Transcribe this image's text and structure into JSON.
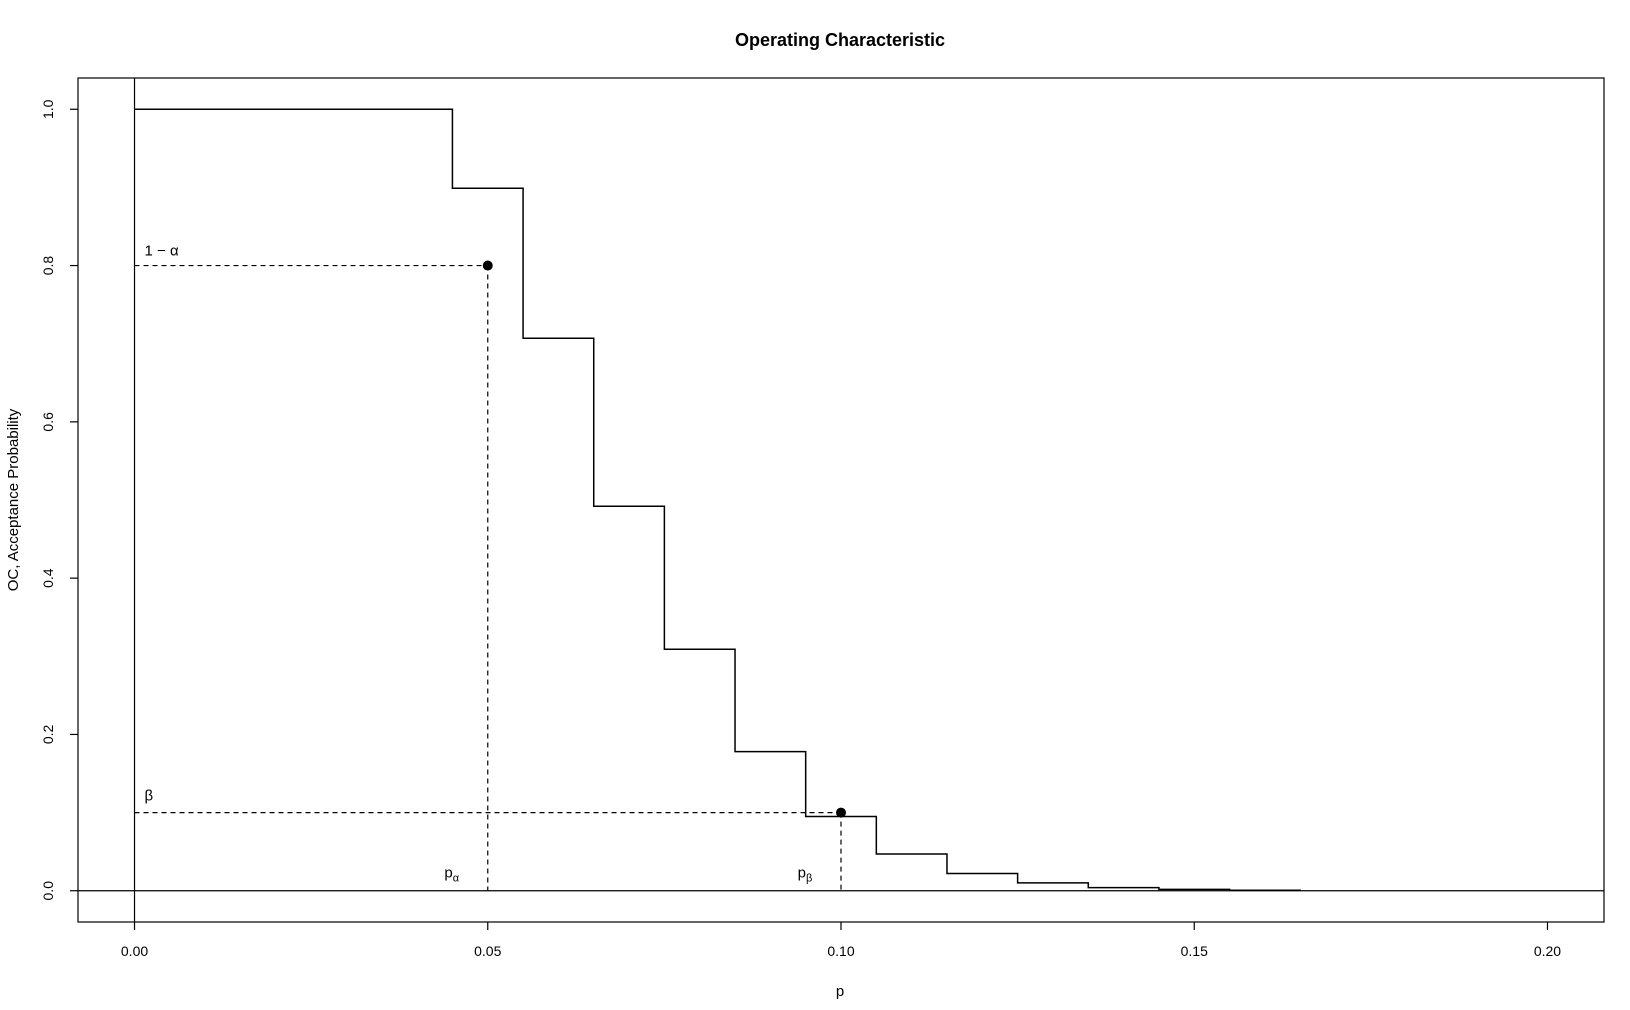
{
  "chart_data": {
    "type": "line",
    "title": "Operating Characteristic",
    "xlabel": "p",
    "ylabel": "OC, Acceptance Probability",
    "xlim": [
      -0.008,
      0.208
    ],
    "ylim": [
      -0.04,
      1.04
    ],
    "x_ticks": [
      "0.00",
      "0.05",
      "0.10",
      "0.15",
      "0.20"
    ],
    "y_ticks": [
      "0.0",
      "0.2",
      "0.4",
      "0.6",
      "0.8",
      "1.0"
    ],
    "grid": false,
    "legend": "none",
    "reference_lines": {
      "x": 0,
      "y": 0
    },
    "series": [
      {
        "style": "step",
        "x": [
          0.0,
          0.045,
          0.055,
          0.065,
          0.075,
          0.085,
          0.095,
          0.105,
          0.115,
          0.125,
          0.135,
          0.145,
          0.155,
          0.165
        ],
        "y": [
          1.0,
          0.899,
          0.707,
          0.492,
          0.309,
          0.178,
          0.095,
          0.047,
          0.022,
          0.01,
          0.004,
          0.0017,
          0.0006,
          0.0
        ]
      }
    ],
    "points": [
      {
        "x": 0.05,
        "y": 0.8
      },
      {
        "x": 0.1,
        "y": 0.1
      }
    ],
    "annotations": {
      "one_minus_alpha": "1 − α",
      "beta": "β",
      "p_alpha_base": "p",
      "p_alpha_sub": "α",
      "p_beta_base": "p",
      "p_beta_sub": "β"
    },
    "colors": {
      "line": "#000000",
      "background": "#ffffff"
    }
  }
}
